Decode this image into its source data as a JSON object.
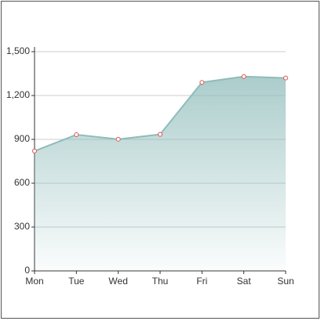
{
  "chart_data": {
    "type": "line",
    "area": true,
    "categories": [
      "Mon",
      "Tue",
      "Wed",
      "Thu",
      "Fri",
      "Sat",
      "Sun"
    ],
    "values": [
      820,
      932,
      901,
      934,
      1290,
      1330,
      1320
    ],
    "color": "#8fbcbb",
    "marker_color": "#d9534f",
    "ylim": [
      0,
      1500
    ],
    "yticks": [
      0,
      300,
      600,
      900,
      {
        "value": 1200,
        "label": "1,200"
      },
      {
        "value": 1500,
        "label": "1,500"
      }
    ],
    "grid": true
  }
}
